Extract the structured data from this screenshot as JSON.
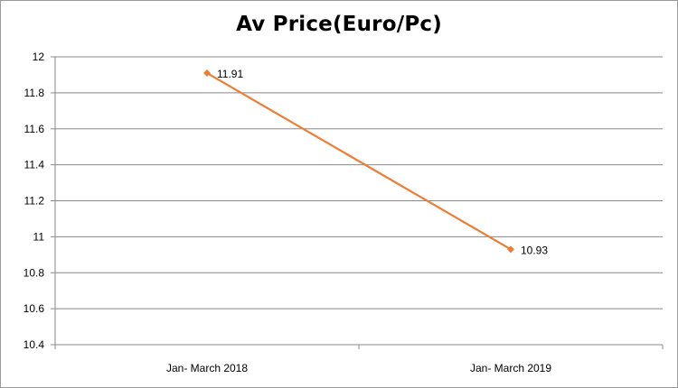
{
  "chart_data": {
    "type": "line",
    "title": "Av Price(Euro/Pc)",
    "xlabel": "",
    "ylabel": "",
    "categories": [
      "Jan- March 2018",
      "Jan- March 2019"
    ],
    "series": [
      {
        "values": [
          11.91,
          10.93
        ],
        "data_labels": [
          "11.91",
          "10.93"
        ],
        "color": "#ED7D31",
        "marker": "diamond"
      }
    ],
    "ylim": [
      10.4,
      12
    ],
    "yticks": [
      10.4,
      10.6,
      10.8,
      11,
      11.2,
      11.4,
      11.6,
      11.8,
      12
    ],
    "ytick_labels": [
      "10.4",
      "10.6",
      "10.8",
      "11",
      "11.2",
      "11.4",
      "11.6",
      "11.8",
      "12"
    ],
    "grid": "horizontal",
    "legend": "none"
  }
}
